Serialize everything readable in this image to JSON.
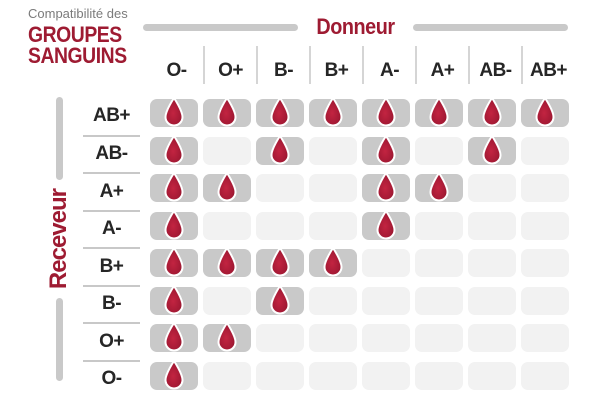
{
  "title": {
    "kicker": "Compatibilité des",
    "line1": "GROUPES",
    "line2": "SANGUINS"
  },
  "axes": {
    "donor_label": "Donneur",
    "receiver_label": "Receveur"
  },
  "colors": {
    "accent_red": "#9e1b32",
    "drop_red": "#a51a35",
    "filled_cell_gray": "#c9c9c9",
    "empty_cell_gray": "#f2f2f2",
    "header_separator_gray": "#d5d5d5",
    "row_separator_gray": "#c8c8c8",
    "muted_text_gray": "#7b7b7b",
    "header_text": "#262626"
  },
  "icons": {
    "compatible_marker": "blood-drop-icon"
  },
  "chart_data": {
    "type": "table",
    "title": "Compatibilité des GROUPES SANGUINS",
    "x_axis_label": "Donneur",
    "y_axis_label": "Receveur",
    "columns": [
      "O-",
      "O+",
      "B-",
      "B+",
      "A-",
      "A+",
      "AB-",
      "AB+"
    ],
    "rows": [
      "AB+",
      "AB-",
      "A+",
      "A-",
      "B+",
      "B-",
      "O+",
      "O-"
    ],
    "matrix": [
      [
        1,
        1,
        1,
        1,
        1,
        1,
        1,
        1
      ],
      [
        1,
        0,
        1,
        0,
        1,
        0,
        1,
        0
      ],
      [
        1,
        1,
        0,
        0,
        1,
        1,
        0,
        0
      ],
      [
        1,
        0,
        0,
        0,
        1,
        0,
        0,
        0
      ],
      [
        1,
        1,
        1,
        1,
        0,
        0,
        0,
        0
      ],
      [
        1,
        0,
        1,
        0,
        0,
        0,
        0,
        0
      ],
      [
        1,
        1,
        0,
        0,
        0,
        0,
        0,
        0
      ],
      [
        1,
        0,
        0,
        0,
        0,
        0,
        0,
        0
      ]
    ],
    "cell_meaning": "1 = compatible (blood drop shown on gray pill), 0 = incompatible (empty light pill)",
    "legend_position": "none",
    "grid": "off"
  }
}
